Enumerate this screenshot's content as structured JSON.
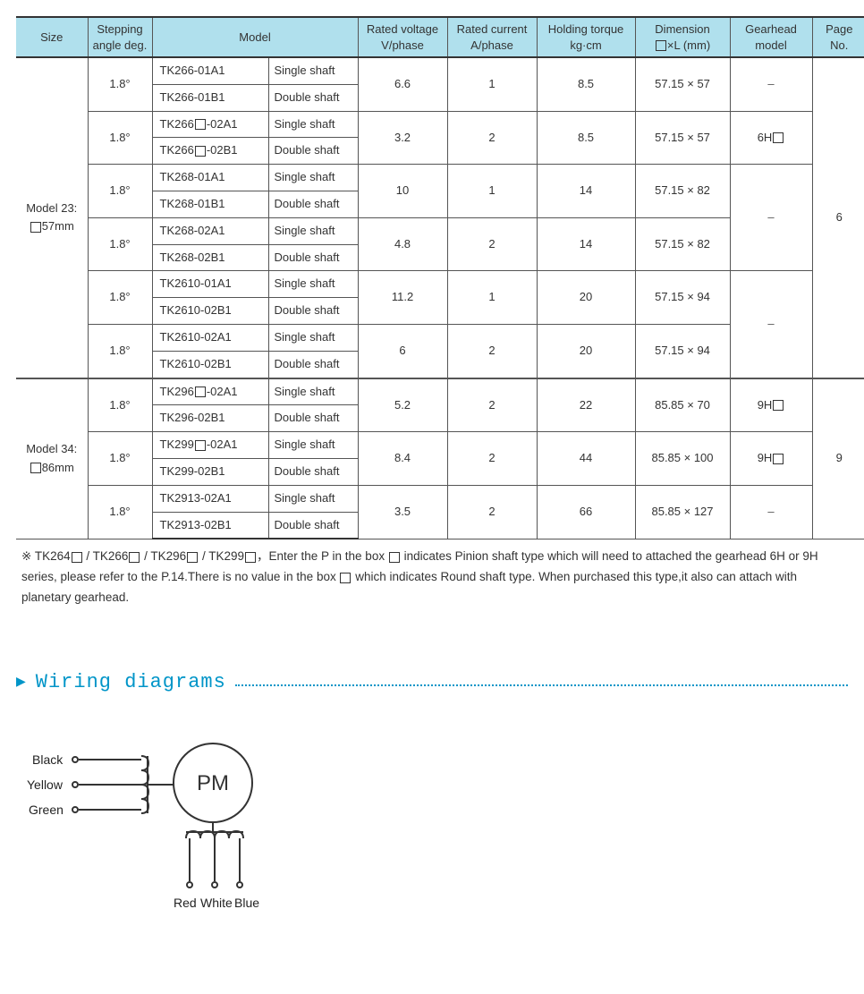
{
  "columns": {
    "size": {
      "h1": "Size",
      "h2": ""
    },
    "step": {
      "h1": "Stepping",
      "h2": "angle deg."
    },
    "model": {
      "h1": "Model",
      "h2": ""
    },
    "voltage": {
      "h1": "Rated voltage",
      "h2": "V/phase"
    },
    "current": {
      "h1": "Rated current",
      "h2": "A/phase"
    },
    "torque": {
      "h1": "Holding torque",
      "h2": "kg·cm"
    },
    "dim": {
      "h1": "Dimension",
      "h2": "□×L (mm)"
    },
    "gear": {
      "h1": "Gearhead",
      "h2": "model"
    },
    "page": {
      "h1": "Page",
      "h2": "No."
    }
  },
  "sizes": [
    {
      "label_line1": "Model 23:",
      "label_line2": "□57mm",
      "page": "6",
      "groups": [
        {
          "step": "1.8°",
          "models": [
            [
              "TK266-01A1",
              "Single shaft"
            ],
            [
              "TK266-01B1",
              "Double shaft"
            ]
          ],
          "voltage": "6.6",
          "current": "1",
          "torque": "8.5",
          "dim": "57.15 × 57",
          "gear": "–",
          "gear_span": 1
        },
        {
          "step": "1.8°",
          "models": [
            [
              "TK266□-02A1",
              "Single shaft"
            ],
            [
              "TK266□-02B1",
              "Double shaft"
            ]
          ],
          "voltage": "3.2",
          "current": "2",
          "torque": "8.5",
          "dim": "57.15 × 57",
          "gear": "6H□",
          "gear_span": 1
        },
        {
          "step": "1.8°",
          "models": [
            [
              "TK268-01A1",
              "Single shaft"
            ],
            [
              "TK268-01B1",
              "Double shaft"
            ]
          ],
          "voltage": "10",
          "current": "1",
          "torque": "14",
          "dim": "57.15 × 82",
          "gear": "–",
          "gear_span": 2
        },
        {
          "step": "1.8°",
          "models": [
            [
              "TK268-02A1",
              "Single shaft"
            ],
            [
              "TK268-02B1",
              "Double shaft"
            ]
          ],
          "voltage": "4.8",
          "current": "2",
          "torque": "14",
          "dim": "57.15 × 82"
        },
        {
          "step": "1.8°",
          "models": [
            [
              "TK2610-01A1",
              "Single shaft"
            ],
            [
              "TK2610-02B1",
              "Double shaft"
            ]
          ],
          "voltage": "11.2",
          "current": "1",
          "torque": "20",
          "dim": "57.15 × 94",
          "gear": "–",
          "gear_span": 2
        },
        {
          "step": "1.8°",
          "models": [
            [
              "TK2610-02A1",
              "Single shaft"
            ],
            [
              "TK2610-02B1",
              "Double shaft"
            ]
          ],
          "voltage": "6",
          "current": "2",
          "torque": "20",
          "dim": "57.15 × 94"
        }
      ]
    },
    {
      "label_line1": "Model 34:",
      "label_line2": "□86mm",
      "page": "9",
      "groups": [
        {
          "step": "1.8°",
          "models": [
            [
              "TK296□-02A1",
              "Single shaft"
            ],
            [
              "TK296-02B1",
              "Double shaft"
            ]
          ],
          "voltage": "5.2",
          "current": "2",
          "torque": "22",
          "dim": "85.85 × 70",
          "gear": "9H□",
          "gear_span": 1
        },
        {
          "step": "1.8°",
          "models": [
            [
              "TK299□-02A1",
              "Single shaft"
            ],
            [
              "TK299-02B1",
              "Double shaft"
            ]
          ],
          "voltage": "8.4",
          "current": "2",
          "torque": "44",
          "dim": "85.85 × 100",
          "gear": "9H□",
          "gear_span": 1
        },
        {
          "step": "1.8°",
          "models": [
            [
              "TK2913-02A1",
              "Single shaft"
            ],
            [
              "TK2913-02B1",
              "Double shaft"
            ]
          ],
          "voltage": "3.5",
          "current": "2",
          "torque": "66",
          "dim": "85.85 × 127",
          "gear": "–",
          "gear_span": 1
        }
      ]
    }
  ],
  "footnote": "※ TK264□ / TK266□ / TK296□ / TK299□，Enter the P in the box □ indicates Pinion shaft type which will need to attached the gearhead 6H or 9H series, please refer to the P.14.There is no value in the box □ which indicates Round shaft type. When purchased this type,it also can attach with planetary gearhead.",
  "section_title": "Wiring diagrams",
  "wiring_labels": {
    "black": "Black",
    "yellow": "Yellow",
    "green": "Green",
    "red": "Red",
    "white": "White",
    "blue": "Blue",
    "pm": "PM"
  },
  "col_widths": [
    "80",
    "72",
    "130",
    "100",
    "100",
    "100",
    "110",
    "106",
    "92",
    "60"
  ],
  "header_bg": "#b0e0ed",
  "accent": "#0095c8"
}
